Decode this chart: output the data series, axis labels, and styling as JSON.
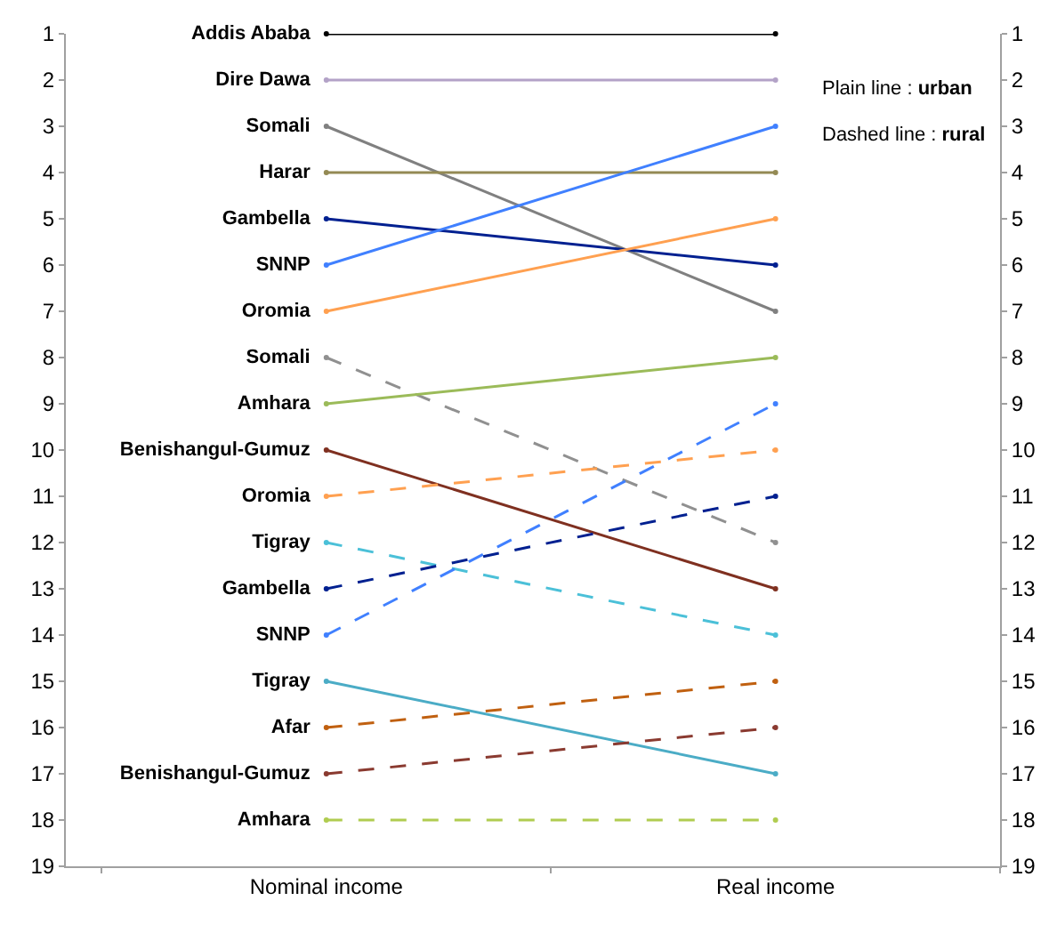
{
  "chart_data": {
    "type": "line",
    "categories": [
      "Nominal income",
      "Real income"
    ],
    "ylim": [
      19,
      1
    ],
    "yticks": [
      1,
      2,
      3,
      4,
      5,
      6,
      7,
      8,
      9,
      10,
      11,
      12,
      13,
      14,
      15,
      16,
      17,
      18,
      19
    ],
    "y2lim": [
      19,
      1
    ],
    "y2ticks": [
      1,
      2,
      3,
      4,
      5,
      6,
      7,
      8,
      9,
      10,
      11,
      12,
      13,
      14,
      15,
      16,
      17,
      18,
      19
    ],
    "legend": false,
    "marker": "circle",
    "annotations": [
      "Plain line : urban",
      "Dashed line : rural"
    ],
    "series": [
      {
        "name": "Addis Ababa",
        "color": "#000000",
        "values": [
          1,
          1
        ],
        "line_style": "solid"
      },
      {
        "name": "Dire Dawa",
        "color": "#b3a2c7",
        "values": [
          2,
          2
        ],
        "line_style": "solid"
      },
      {
        "name": "Somali",
        "color": "#808080",
        "values": [
          3,
          7
        ],
        "line_style": "solid"
      },
      {
        "name": "Harar",
        "color": "#948a54",
        "values": [
          4,
          4
        ],
        "line_style": "solid"
      },
      {
        "name": "Gambella",
        "color": "#002090",
        "values": [
          5,
          6
        ],
        "line_style": "solid"
      },
      {
        "name": "SNNP",
        "color": "#4080ff",
        "values": [
          6,
          3
        ],
        "line_style": "solid"
      },
      {
        "name": "Oromia",
        "color": "#ffa050",
        "values": [
          7,
          5
        ],
        "line_style": "solid"
      },
      {
        "name": "Somali",
        "color": "#909090",
        "values": [
          8,
          12
        ],
        "line_style": "dashed"
      },
      {
        "name": "Amhara",
        "color": "#9bbb59",
        "values": [
          9,
          8
        ],
        "line_style": "solid"
      },
      {
        "name": "Benishangul-Gumuz",
        "color": "#7f3020",
        "values": [
          10,
          13
        ],
        "line_style": "solid"
      },
      {
        "name": "Oromia",
        "color": "#ffa050",
        "values": [
          11,
          10
        ],
        "line_style": "dashed"
      },
      {
        "name": "Tigray",
        "color": "#4bc0d8",
        "values": [
          12,
          14
        ],
        "line_style": "dashed"
      },
      {
        "name": "Gambella",
        "color": "#002090",
        "values": [
          13,
          11
        ],
        "line_style": "dashed"
      },
      {
        "name": "SNNP",
        "color": "#4080ff",
        "values": [
          14,
          9
        ],
        "line_style": "dashed"
      },
      {
        "name": "Tigray",
        "color": "#4bacc6",
        "values": [
          15,
          17
        ],
        "line_style": "solid"
      },
      {
        "name": "Afar",
        "color": "#c06010",
        "values": [
          16,
          15
        ],
        "line_style": "dashed"
      },
      {
        "name": "Benishangul-Gumuz",
        "color": "#8a3a30",
        "values": [
          17,
          16
        ],
        "line_style": "dashed"
      },
      {
        "name": "Amhara",
        "color": "#b0cc50",
        "values": [
          18,
          18
        ],
        "line_style": "dashed"
      }
    ]
  }
}
